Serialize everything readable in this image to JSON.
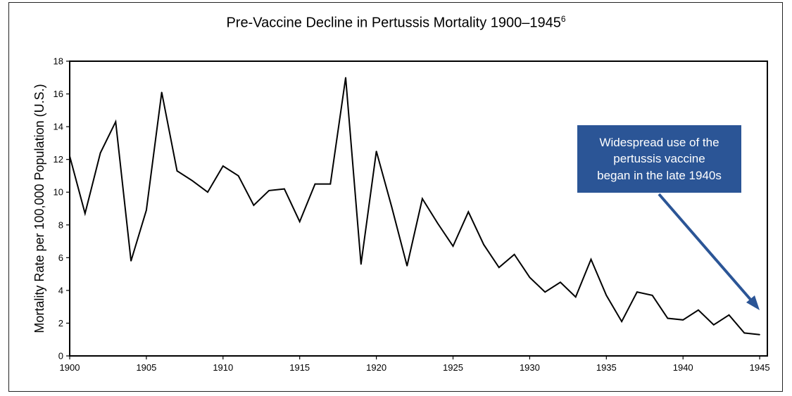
{
  "chart_data": {
    "type": "line",
    "title": "Pre-Vaccine Decline in Pertussis Mortality 1900–1945",
    "title_superscript": "6",
    "xlabel": "",
    "ylabel": "Mortality Rate per 100,000 Population (U.S.)",
    "xlim": [
      1900,
      1945.5
    ],
    "ylim": [
      0,
      18
    ],
    "xticks": [
      1900,
      1905,
      1910,
      1915,
      1920,
      1925,
      1930,
      1935,
      1940,
      1945
    ],
    "yticks": [
      0,
      2,
      4,
      6,
      8,
      10,
      12,
      14,
      16,
      18
    ],
    "grid": false,
    "line_color": "#000000",
    "series": [
      {
        "x": [
          1900,
          1901,
          1902,
          1903,
          1904,
          1905,
          1906,
          1907,
          1908,
          1909,
          1910,
          1911,
          1912,
          1913,
          1914,
          1915,
          1916,
          1917,
          1918,
          1919,
          1920,
          1921,
          1922,
          1923,
          1924,
          1925,
          1926,
          1927,
          1928,
          1929,
          1930,
          1931,
          1932,
          1933,
          1934,
          1935,
          1936,
          1937,
          1938,
          1939,
          1940,
          1941,
          1942,
          1943,
          1944,
          1945
        ],
        "values": [
          12.2,
          8.7,
          12.4,
          14.3,
          5.8,
          8.9,
          16.1,
          11.3,
          10.7,
          10.0,
          11.6,
          11.0,
          9.2,
          10.1,
          10.2,
          8.2,
          10.5,
          10.5,
          17.0,
          5.6,
          12.5,
          9.1,
          5.5,
          9.6,
          8.1,
          6.7,
          8.8,
          6.8,
          5.4,
          6.2,
          4.8,
          3.9,
          4.5,
          3.6,
          5.9,
          3.7,
          2.1,
          3.9,
          3.7,
          2.3,
          2.2,
          2.8,
          1.9,
          2.5,
          1.4,
          1.3
        ]
      }
    ],
    "annotation": {
      "lines": [
        "Widespread use of the",
        "pertussis vaccine",
        "began in the late 1940s"
      ],
      "box_color": "#2b5596",
      "text_color": "#ffffff",
      "arrow_color": "#2b5596"
    }
  }
}
